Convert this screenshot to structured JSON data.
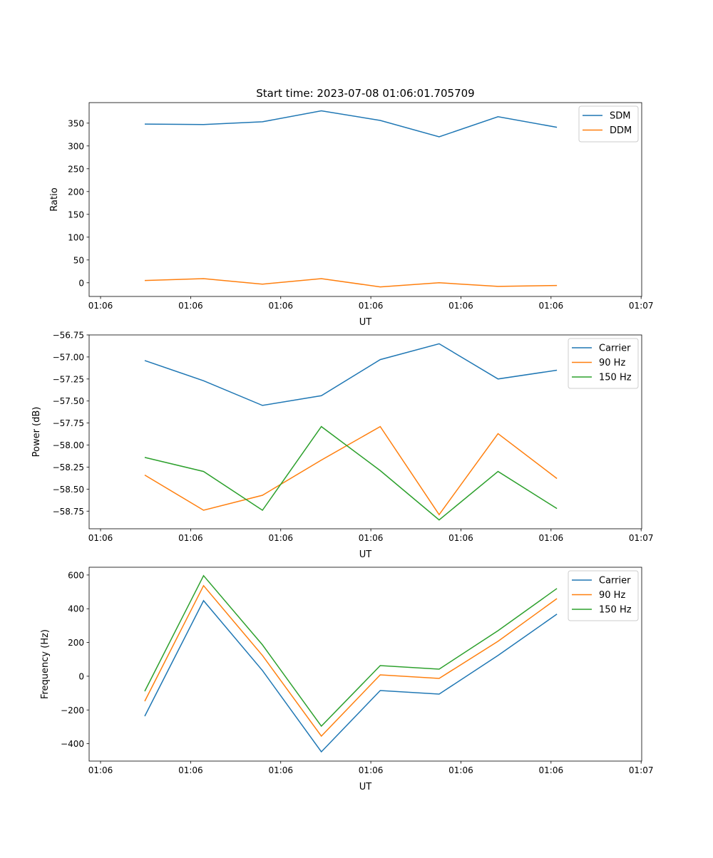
{
  "chart_data": [
    {
      "type": "line",
      "title": "Start time: 2023-07-08 01:06:01.705709",
      "xlabel": "UT",
      "ylabel": "Ratio",
      "x": [
        0,
        1,
        2,
        3,
        4,
        5,
        6,
        7
      ],
      "xlim": [
        -0.944,
        8.44
      ],
      "xticks": [
        -0.75,
        0.78,
        2.31,
        3.84,
        5.37,
        6.9,
        8.43
      ],
      "xticklabels": [
        "01:06",
        "01:06",
        "01:06",
        "01:06",
        "01:06",
        "01:06",
        "01:07"
      ],
      "ylim": [
        -30,
        395
      ],
      "yticks": [
        0,
        50,
        100,
        150,
        200,
        250,
        300,
        350
      ],
      "yticklabels": [
        "0",
        "50",
        "100",
        "150",
        "200",
        "250",
        "300",
        "350"
      ],
      "legend": "top-right",
      "series": [
        {
          "name": "SDM",
          "color": "#1f77b4",
          "values": [
            348,
            347,
            353,
            377,
            356,
            320,
            364,
            341
          ]
        },
        {
          "name": "DDM",
          "color": "#ff7f0e",
          "values": [
            5,
            9,
            -3,
            9,
            -9,
            0,
            -8,
            -6
          ]
        }
      ]
    },
    {
      "type": "line",
      "title": "",
      "xlabel": "UT",
      "ylabel": "Power (dB)",
      "x": [
        0,
        1,
        2,
        3,
        4,
        5,
        6,
        7
      ],
      "xlim": [
        -0.944,
        8.44
      ],
      "xticks": [
        -0.75,
        0.78,
        2.31,
        3.84,
        5.37,
        6.9,
        8.43
      ],
      "xticklabels": [
        "01:06",
        "01:06",
        "01:06",
        "01:06",
        "01:06",
        "01:06",
        "01:07"
      ],
      "ylim": [
        -58.95,
        -56.75
      ],
      "yticks": [
        -58.75,
        -58.5,
        -58.25,
        -58,
        -57.75,
        -57.5,
        -57.25,
        -57,
        -56.75
      ],
      "yticklabels": [
        "−58.75",
        "−58.50",
        "−58.25",
        "−58.00",
        "−57.75",
        "−57.50",
        "−57.25",
        "−57.00",
        "−56.75"
      ],
      "legend": "top-right",
      "series": [
        {
          "name": "Carrier",
          "color": "#1f77b4",
          "values": [
            -57.04,
            -57.27,
            -57.55,
            -57.44,
            -57.03,
            -56.85,
            -57.25,
            -57.15
          ]
        },
        {
          "name": "90 Hz",
          "color": "#ff7f0e",
          "values": [
            -58.34,
            -58.74,
            -58.57,
            -58.17,
            -57.79,
            -58.79,
            -57.87,
            -58.38
          ]
        },
        {
          "name": "150 Hz",
          "color": "#2ca02c",
          "values": [
            -58.14,
            -58.3,
            -58.74,
            -57.79,
            -58.29,
            -58.85,
            -58.3,
            -58.72
          ]
        }
      ]
    },
    {
      "type": "line",
      "title": "",
      "xlabel": "UT",
      "ylabel": "Frequency (Hz)",
      "x": [
        0,
        1,
        2,
        3,
        4,
        5,
        6,
        7
      ],
      "xlim": [
        -0.944,
        8.44
      ],
      "xticks": [
        -0.75,
        0.78,
        2.31,
        3.84,
        5.37,
        6.9,
        8.43
      ],
      "xticklabels": [
        "01:06",
        "01:06",
        "01:06",
        "01:06",
        "01:06",
        "01:06",
        "01:07"
      ],
      "ylim": [
        -503,
        646
      ],
      "yticks": [
        -400,
        -200,
        0,
        200,
        400,
        600
      ],
      "yticklabels": [
        "−400",
        "−200",
        "0",
        "200",
        "400",
        "600"
      ],
      "legend": "top-right",
      "series": [
        {
          "name": "Carrier",
          "color": "#1f77b4",
          "values": [
            -237,
            448,
            34,
            -448,
            -85,
            -106,
            123,
            368
          ]
        },
        {
          "name": "90 Hz",
          "color": "#ff7f0e",
          "values": [
            -148,
            537,
            123,
            -355,
            8,
            -13,
            207,
            460
          ]
        },
        {
          "name": "150 Hz",
          "color": "#2ca02c",
          "values": [
            -89,
            596,
            186,
            -296,
            63,
            42,
            270,
            520
          ]
        }
      ]
    }
  ]
}
